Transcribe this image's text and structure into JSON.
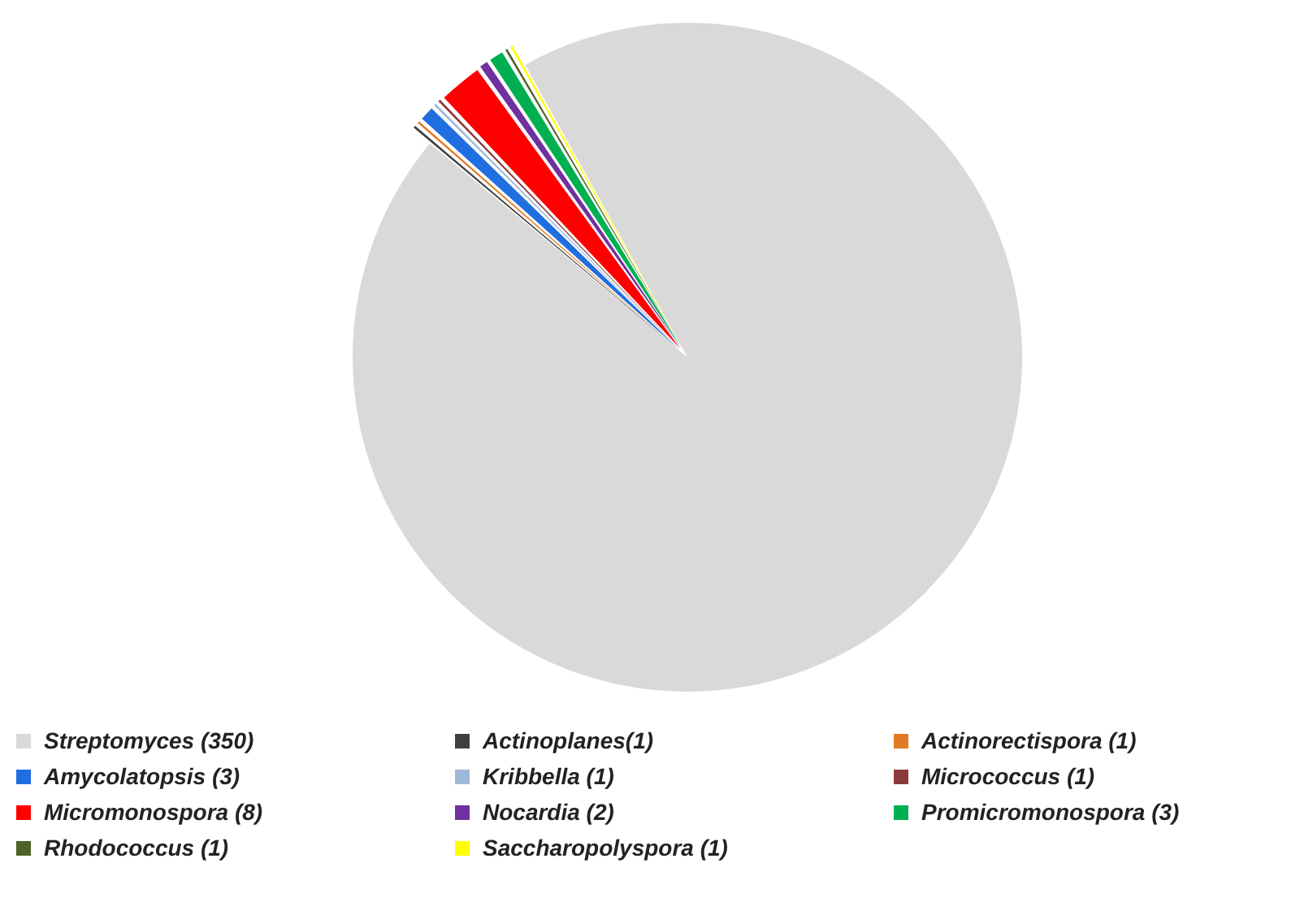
{
  "chart_data": {
    "type": "pie",
    "legend": "bottom",
    "categories": [
      "Streptomyces (350)",
      "Actinoplanes(1)",
      "Actinorectispora (1)",
      "Amycolatopsis (3)",
      "Kribbella (1)",
      "Micrococcus (1)",
      "Micromonospora (8)",
      "Nocardia (2)",
      "Promicromonospora (3)",
      "Rhodococcus (1)",
      "Saccharopolyspora (1)"
    ],
    "values": [
      350,
      1,
      1,
      3,
      1,
      1,
      8,
      2,
      3,
      1,
      1
    ],
    "colors": [
      "#d9d9d9",
      "#404040",
      "#e07b24",
      "#1f6fe0",
      "#9db8d9",
      "#8b3a3a",
      "#ff0000",
      "#7030a0",
      "#00b050",
      "#4f6228",
      "#ffff00"
    ]
  }
}
